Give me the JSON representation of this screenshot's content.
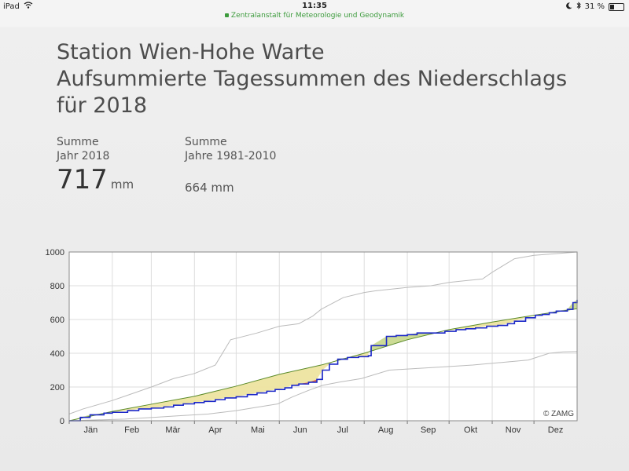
{
  "status_bar": {
    "device": "iPad",
    "time": "11:35",
    "battery": "31 %",
    "battery_level": 0.31
  },
  "url_bar": {
    "site": "Zentralanstalt für Meteorologie und Geodynamik"
  },
  "page": {
    "title_lines": [
      "Station Wien-Hohe Warte",
      "Aufsummierte Tagessummen des Niederschlags",
      "für 2018"
    ]
  },
  "stats": {
    "year": {
      "label_line1": "Summe",
      "label_line2": "Jahr 2018",
      "value": "717",
      "unit": "mm"
    },
    "normal": {
      "label_line1": "Summe",
      "label_line2": "Jahre 1981-2010",
      "value": "664 mm"
    }
  },
  "chart_data": {
    "type": "line",
    "ylim": [
      0,
      1000
    ],
    "y_ticks": [
      "0",
      "200",
      "400",
      "600",
      "800",
      "1000"
    ],
    "x_months": [
      "Jän",
      "Feb",
      "Mär",
      "Apr",
      "Mai",
      "Jun",
      "Jul",
      "Aug",
      "Sep",
      "Okt",
      "Nov",
      "Dez"
    ],
    "credit": "© ZAMG",
    "grid": true,
    "colors": {
      "year_2018": "#1c28c8",
      "mean": "#5a8a2a",
      "envelope": "#bbbbbb",
      "above_fill": "#ede4a0",
      "below_fill": "#c9d98f",
      "extreme": "#d8441e"
    },
    "series": [
      {
        "key": "max_1981_2010",
        "x": [
          0,
          10,
          31,
          45,
          59,
          75,
          90,
          105,
          116,
          135,
          151,
          165,
          175,
          181,
          197,
          212,
          220,
          243,
          260,
          273,
          285,
          297,
          304,
          320,
          334,
          350,
          365
        ],
        "y": [
          40,
          70,
          120,
          160,
          200,
          250,
          280,
          330,
          480,
          520,
          560,
          575,
          620,
          660,
          730,
          760,
          770,
          790,
          800,
          820,
          830,
          840,
          880,
          960,
          980,
          990,
          1000
        ]
      },
      {
        "key": "min_1981_2010",
        "x": [
          0,
          20,
          40,
          60,
          80,
          100,
          120,
          135,
          150,
          160,
          172,
          182,
          195,
          210,
          230,
          250,
          270,
          290,
          310,
          330,
          345,
          355,
          365
        ],
        "y": [
          0,
          5,
          10,
          20,
          30,
          40,
          60,
          80,
          100,
          140,
          180,
          210,
          230,
          250,
          300,
          310,
          320,
          330,
          345,
          360,
          400,
          408,
          410
        ]
      },
      {
        "key": "mean_1981_2010",
        "x": [
          0,
          31,
          59,
          90,
          120,
          151,
          181,
          212,
          243,
          273,
          304,
          334,
          365
        ],
        "y": [
          0,
          55,
          98,
          145,
          205,
          275,
          330,
          400,
          480,
          540,
          585,
          625,
          664
        ]
      },
      {
        "key": "year_2018",
        "x": [
          0,
          8,
          15,
          25,
          31,
          42,
          50,
          59,
          68,
          75,
          82,
          90,
          97,
          105,
          112,
          120,
          128,
          135,
          142,
          148,
          155,
          160,
          165,
          172,
          178,
          182,
          187,
          193,
          200,
          208,
          215,
          217,
          228,
          235,
          243,
          250,
          255,
          262,
          270,
          278,
          285,
          292,
          300,
          308,
          315,
          320,
          328,
          335,
          340,
          345,
          350,
          358,
          362,
          365
        ],
        "y": [
          0,
          20,
          35,
          45,
          50,
          60,
          70,
          75,
          82,
          92,
          100,
          108,
          115,
          125,
          135,
          142,
          155,
          165,
          175,
          185,
          195,
          210,
          218,
          228,
          245,
          300,
          335,
          365,
          375,
          380,
          385,
          445,
          500,
          505,
          510,
          520,
          520,
          520,
          530,
          540,
          545,
          550,
          560,
          565,
          575,
          590,
          610,
          625,
          630,
          640,
          650,
          660,
          700,
          717
        ]
      }
    ]
  }
}
